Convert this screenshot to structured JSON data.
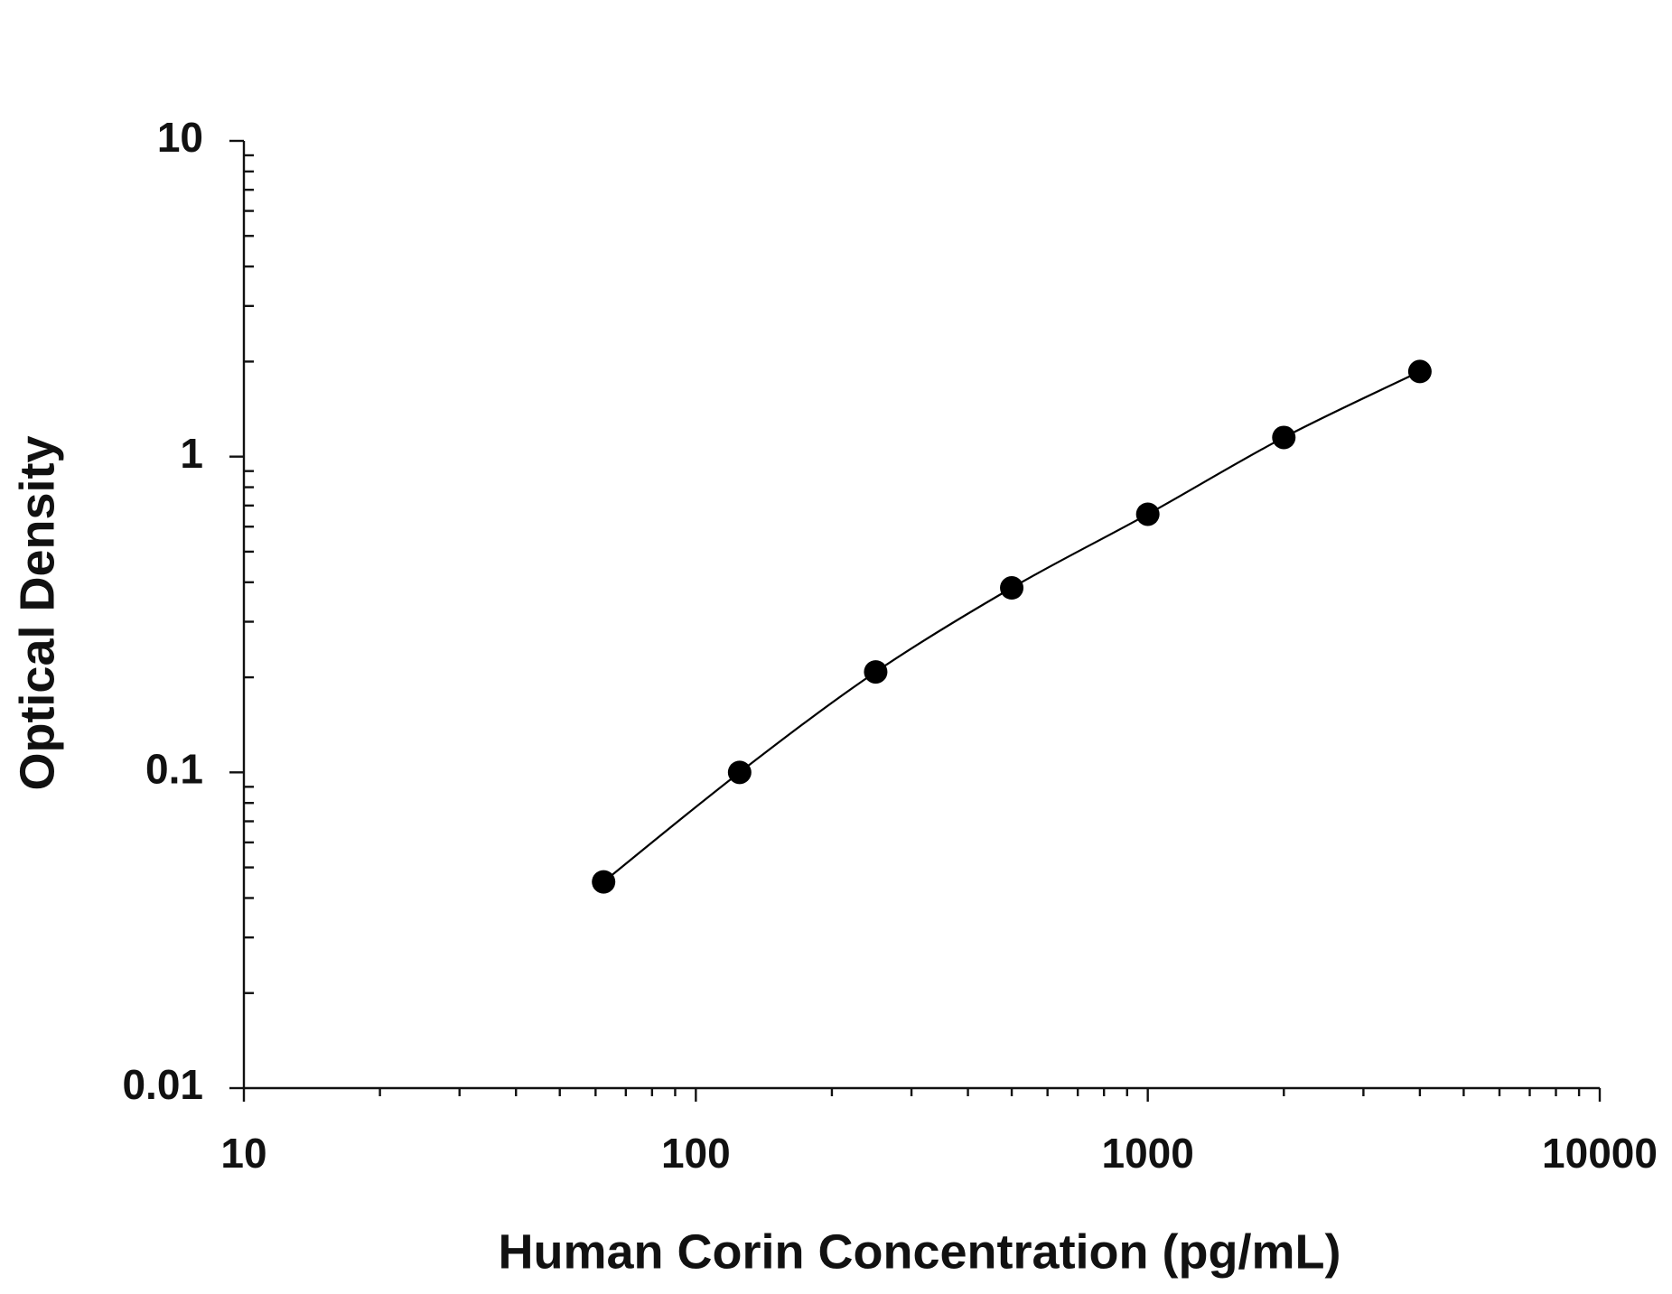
{
  "chart_data": {
    "type": "scatter",
    "x_label": "Human Corin Concentration (pg/mL)",
    "y_label": "Optical Density",
    "x": [
      62.5,
      125,
      250,
      500,
      1000,
      2000,
      4000
    ],
    "series": [
      {
        "color": "#000000",
        "values": [
          0.045,
          0.1,
          0.208,
          0.384,
          0.657,
          1.15,
          1.86
        ]
      }
    ],
    "fit_curve": true,
    "xscale": "log",
    "yscale": "log",
    "xlim": [
      10,
      10000
    ],
    "ylim": [
      0.01,
      10
    ],
    "xticks": [
      10,
      100,
      1000,
      10000
    ],
    "yticks": [
      0.01,
      0.1,
      1,
      10
    ]
  }
}
